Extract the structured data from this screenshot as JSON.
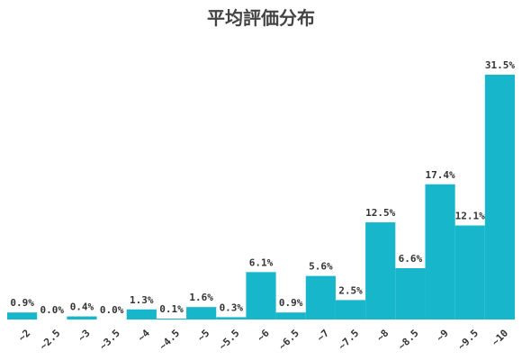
{
  "chart_data": {
    "type": "bar",
    "title": "平均評価分布",
    "xlabel": "",
    "ylabel": "",
    "categories": [
      "~2",
      "~2.5",
      "~3",
      "~3.5",
      "~4",
      "~4.5",
      "~5",
      "~5.5",
      "~6",
      "~6.5",
      "~7",
      "~7.5",
      "~8",
      "~8.5",
      "~9",
      "~9.5",
      "~10"
    ],
    "values": [
      0.9,
      0.0,
      0.4,
      0.0,
      1.3,
      0.1,
      1.6,
      0.3,
      6.1,
      0.9,
      5.6,
      2.5,
      12.5,
      6.6,
      17.4,
      12.1,
      31.5
    ],
    "value_labels": [
      "0.9%",
      "0.0%",
      "0.4%",
      "0.0%",
      "1.3%",
      "0.1%",
      "1.6%",
      "0.3%",
      "6.1%",
      "0.9%",
      "5.6%",
      "2.5%",
      "12.5%",
      "6.6%",
      "17.4%",
      "12.1%",
      "31.5%"
    ],
    "bar_color": "#17b6cb",
    "grid": false,
    "legend": "none"
  }
}
